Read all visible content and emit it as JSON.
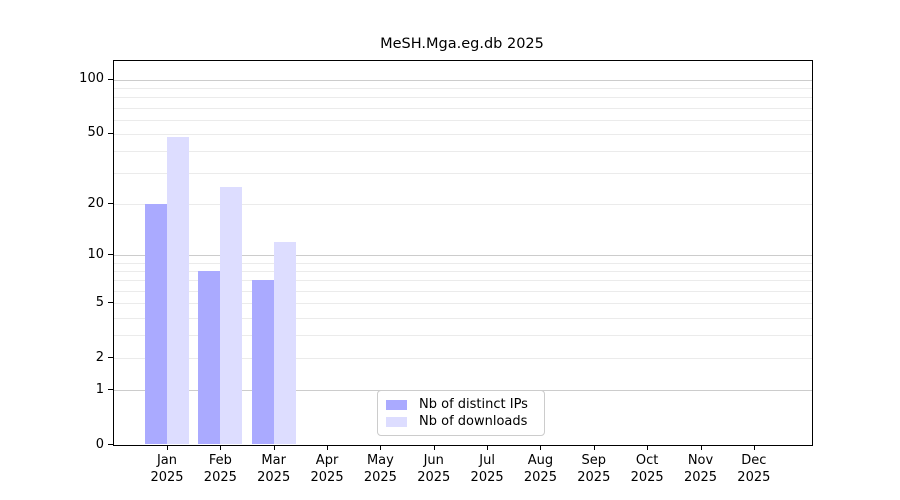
{
  "chart_data": {
    "type": "bar",
    "title": "MeSH.Mga.eg.db 2025",
    "categories": [
      "Jan 2025",
      "Feb 2025",
      "Mar 2025",
      "Apr 2025",
      "May 2025",
      "Jun 2025",
      "Jul 2025",
      "Aug 2025",
      "Sep 2025",
      "Oct 2025",
      "Nov 2025",
      "Dec 2025"
    ],
    "series": [
      {
        "name": "Nb of distinct IPs",
        "color": "#aaaaff",
        "values": [
          20,
          8,
          7,
          0,
          0,
          0,
          0,
          0,
          0,
          0,
          0,
          0
        ]
      },
      {
        "name": "Nb of downloads",
        "color": "#ddddff",
        "values": [
          48,
          25,
          12,
          0,
          0,
          0,
          0,
          0,
          0,
          0,
          0,
          0
        ]
      }
    ],
    "yscale": "log1p",
    "ylim": [
      0,
      127
    ],
    "yticks": [
      0,
      1,
      2,
      5,
      10,
      20,
      50,
      100
    ],
    "gridlines": {
      "major": [
        1,
        10,
        100
      ],
      "minor": [
        2,
        3,
        4,
        5,
        6,
        7,
        8,
        9,
        20,
        30,
        40,
        50,
        60,
        70,
        80,
        90
      ],
      "major_color": "#cccccc",
      "minor_color": "#ebebeb"
    },
    "grid": "on",
    "legend_position": "lower-center-inside",
    "axis_color": "#000000",
    "background_color": "#ffffff"
  }
}
